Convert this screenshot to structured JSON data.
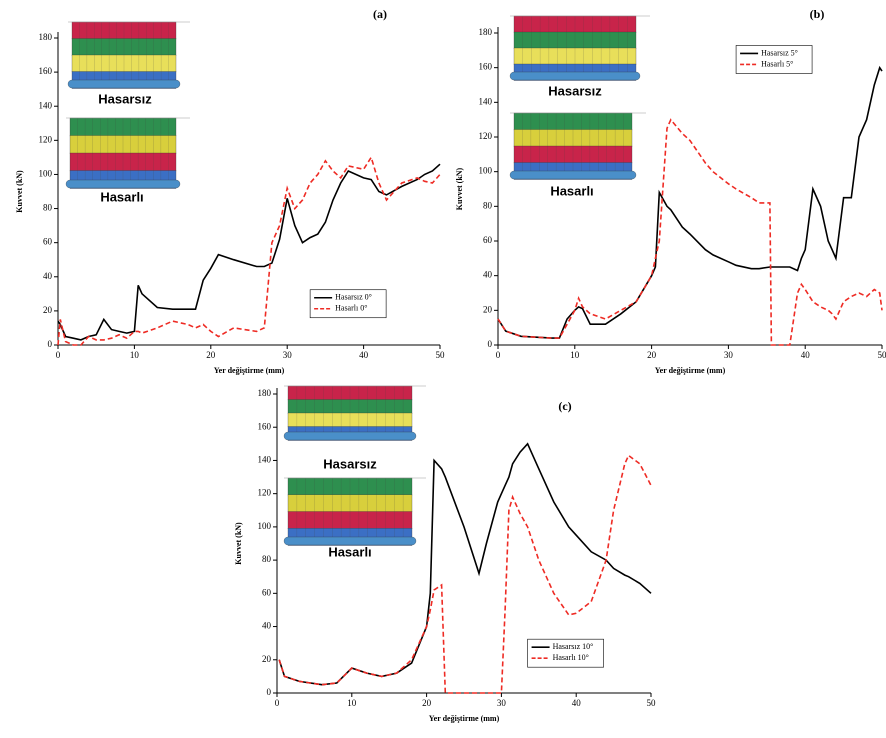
{
  "chart_data": [
    {
      "type": "line",
      "title": "(a)",
      "xlabel": "Yer değiştirme (mm)",
      "ylabel": "Kuvvet (kN)",
      "annotations": [
        "Hasarsız",
        "Hasarlı"
      ],
      "x": [
        0,
        0.3,
        1,
        2,
        3,
        4,
        5,
        6,
        7,
        8,
        9,
        10,
        10.5,
        11,
        13,
        15,
        17,
        18,
        19,
        20,
        21,
        23,
        26,
        27,
        28,
        29,
        30,
        31,
        32,
        33,
        34,
        35,
        36,
        37,
        38,
        40,
        41,
        42,
        43,
        45,
        47,
        48,
        49,
        50
      ],
      "series": [
        {
          "name": "Hasarsız 0°",
          "color": "#000000",
          "dash": false,
          "values": [
            14,
            12,
            5,
            4,
            3,
            5,
            6,
            15,
            9,
            8,
            7,
            8,
            35,
            30,
            22,
            21,
            21,
            21,
            38,
            45,
            53,
            50,
            46,
            46,
            48,
            62,
            86,
            70,
            60,
            63,
            65,
            72,
            85,
            95,
            102,
            98,
            97,
            90,
            88,
            93,
            97,
            100,
            102,
            106
          ]
        },
        {
          "name": "Hasarlı 0°",
          "color": "#ee2b24",
          "dash": true,
          "values": [
            0,
            15,
            2,
            0,
            0,
            5,
            3,
            3,
            4,
            6,
            4,
            8,
            8,
            7,
            10,
            14,
            12,
            10,
            12,
            8,
            5,
            10,
            8,
            10,
            60,
            70,
            92,
            80,
            85,
            95,
            100,
            108,
            102,
            98,
            105,
            103,
            110,
            95,
            85,
            95,
            98,
            96,
            95,
            100
          ]
        }
      ],
      "xlim": [
        0,
        50
      ],
      "xticks": [
        0,
        10,
        20,
        30,
        40,
        50
      ],
      "ylim": [
        0,
        180
      ],
      "yticks": [
        0,
        20,
        40,
        60,
        80,
        100,
        120,
        140,
        160,
        180
      ],
      "legend": "lower right"
    },
    {
      "type": "line",
      "title": "(b)",
      "xlabel": "Yer değiştirme (mm)",
      "ylabel": "Kuvvet (kN)",
      "annotations": [
        "Hasarsız",
        "Hasarlı"
      ],
      "x": [
        0,
        1,
        3,
        7,
        8,
        9,
        10,
        10.5,
        11,
        12,
        14,
        16,
        18,
        20,
        20.5,
        21,
        22,
        22.5,
        24,
        25,
        27,
        28,
        30,
        31,
        33,
        34,
        35.4,
        35.6,
        36,
        38,
        39,
        39.5,
        40,
        41,
        42,
        43,
        43.5,
        44,
        45,
        46,
        47,
        48,
        49,
        49.7,
        50
      ],
      "series": [
        {
          "name": "Hasarsız 5°",
          "color": "#000000",
          "dash": false,
          "values": [
            15,
            8,
            5,
            4,
            4,
            15,
            20,
            22,
            21,
            12,
            12,
            18,
            25,
            40,
            45,
            88,
            80,
            78,
            68,
            64,
            55,
            52,
            48,
            46,
            44,
            44,
            45,
            45,
            45,
            45,
            43,
            50,
            55,
            90,
            80,
            60,
            55,
            50,
            85,
            85,
            120,
            130,
            150,
            160,
            158
          ]
        },
        {
          "name": "Hasarlı 5°",
          "color": "#ee2b24",
          "dash": true,
          "values": [
            15,
            8,
            5,
            4,
            4,
            12,
            20,
            27,
            22,
            18,
            15,
            20,
            25,
            40,
            50,
            60,
            125,
            130,
            122,
            118,
            105,
            100,
            93,
            90,
            85,
            82,
            82,
            0,
            0,
            0,
            30,
            35,
            32,
            25,
            22,
            20,
            18,
            15,
            25,
            28,
            30,
            28,
            32,
            30,
            20
          ]
        }
      ],
      "xlim": [
        0,
        50
      ],
      "xticks": [
        0,
        10,
        20,
        30,
        40,
        50
      ],
      "ylim": [
        0,
        180
      ],
      "yticks": [
        0,
        20,
        40,
        60,
        80,
        100,
        120,
        140,
        160,
        180
      ],
      "legend": "upper center"
    },
    {
      "type": "line",
      "title": "(c)",
      "xlabel": "Yer değiştirme (mm)",
      "ylabel": "Kuvvet (kN)",
      "annotations": [
        "Hasarsız",
        "Hasarlı"
      ],
      "x": [
        0.3,
        1,
        3,
        6,
        8,
        10,
        12,
        14,
        16,
        18,
        20,
        20.5,
        21,
        22,
        22.5,
        25,
        27,
        28,
        29.5,
        30,
        30.5,
        31,
        31.5,
        32.5,
        33.5,
        35,
        37,
        39,
        40,
        42,
        44,
        45,
        46.5,
        47,
        48.5,
        50
      ],
      "series": [
        {
          "name": "Hasarsız 10°",
          "color": "#000000",
          "dash": false,
          "values": [
            20,
            10,
            7,
            5,
            6,
            15,
            12,
            10,
            12,
            18,
            40,
            60,
            140,
            135,
            130,
            100,
            72,
            90,
            115,
            120,
            125,
            130,
            138,
            145,
            150,
            135,
            115,
            100,
            95,
            85,
            80,
            75,
            71,
            70,
            66,
            60
          ]
        },
        {
          "name": "Hasarlı 10°",
          "color": "#ee2b24",
          "dash": true,
          "values": [
            20,
            10,
            7,
            5,
            6,
            15,
            12,
            10,
            12,
            20,
            40,
            50,
            62,
            65,
            0,
            0,
            0,
            0,
            0,
            0,
            50,
            110,
            118,
            108,
            100,
            80,
            60,
            47,
            48,
            55,
            80,
            110,
            138,
            143,
            138,
            125
          ]
        }
      ],
      "xlim": [
        0,
        50
      ],
      "xticks": [
        0,
        10,
        20,
        30,
        40,
        50
      ],
      "ylim": [
        0,
        180
      ],
      "yticks": [
        0,
        20,
        40,
        60,
        80,
        100,
        120,
        140,
        160,
        180
      ],
      "legend": "lower center"
    }
  ]
}
